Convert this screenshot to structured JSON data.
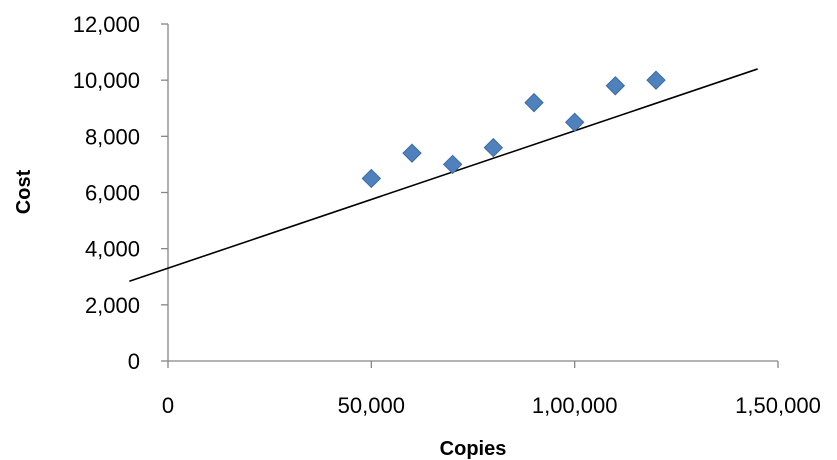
{
  "chart_data": {
    "type": "scatter",
    "title": "",
    "xlabel": "Copies",
    "ylabel": "Cost",
    "xlim": [
      0,
      150000
    ],
    "ylim": [
      0,
      12000
    ],
    "x_ticks": [
      0,
      50000,
      100000,
      150000
    ],
    "x_tick_labels": [
      "0",
      "50,000",
      "1,00,000",
      "1,50,000"
    ],
    "y_ticks": [
      0,
      2000,
      4000,
      6000,
      8000,
      10000,
      12000
    ],
    "y_tick_labels": [
      "0",
      "2,000",
      "4,000",
      "6,000",
      "8,000",
      "10,000",
      "12,000"
    ],
    "grid": false,
    "legend": "none",
    "marker_color": "#4F81BD",
    "line_color": "#000000",
    "points": [
      {
        "x": 50000,
        "y": 6500
      },
      {
        "x": 60000,
        "y": 7400
      },
      {
        "x": 70000,
        "y": 7000
      },
      {
        "x": 80000,
        "y": 7600
      },
      {
        "x": 90000,
        "y": 9200
      },
      {
        "x": 100000,
        "y": 8500
      },
      {
        "x": 110000,
        "y": 9800
      },
      {
        "x": 120000,
        "y": 10000
      }
    ],
    "trendline": {
      "type": "linear",
      "from": {
        "x": -9500,
        "y": 2840
      },
      "to": {
        "x": 145000,
        "y": 10400
      }
    }
  }
}
